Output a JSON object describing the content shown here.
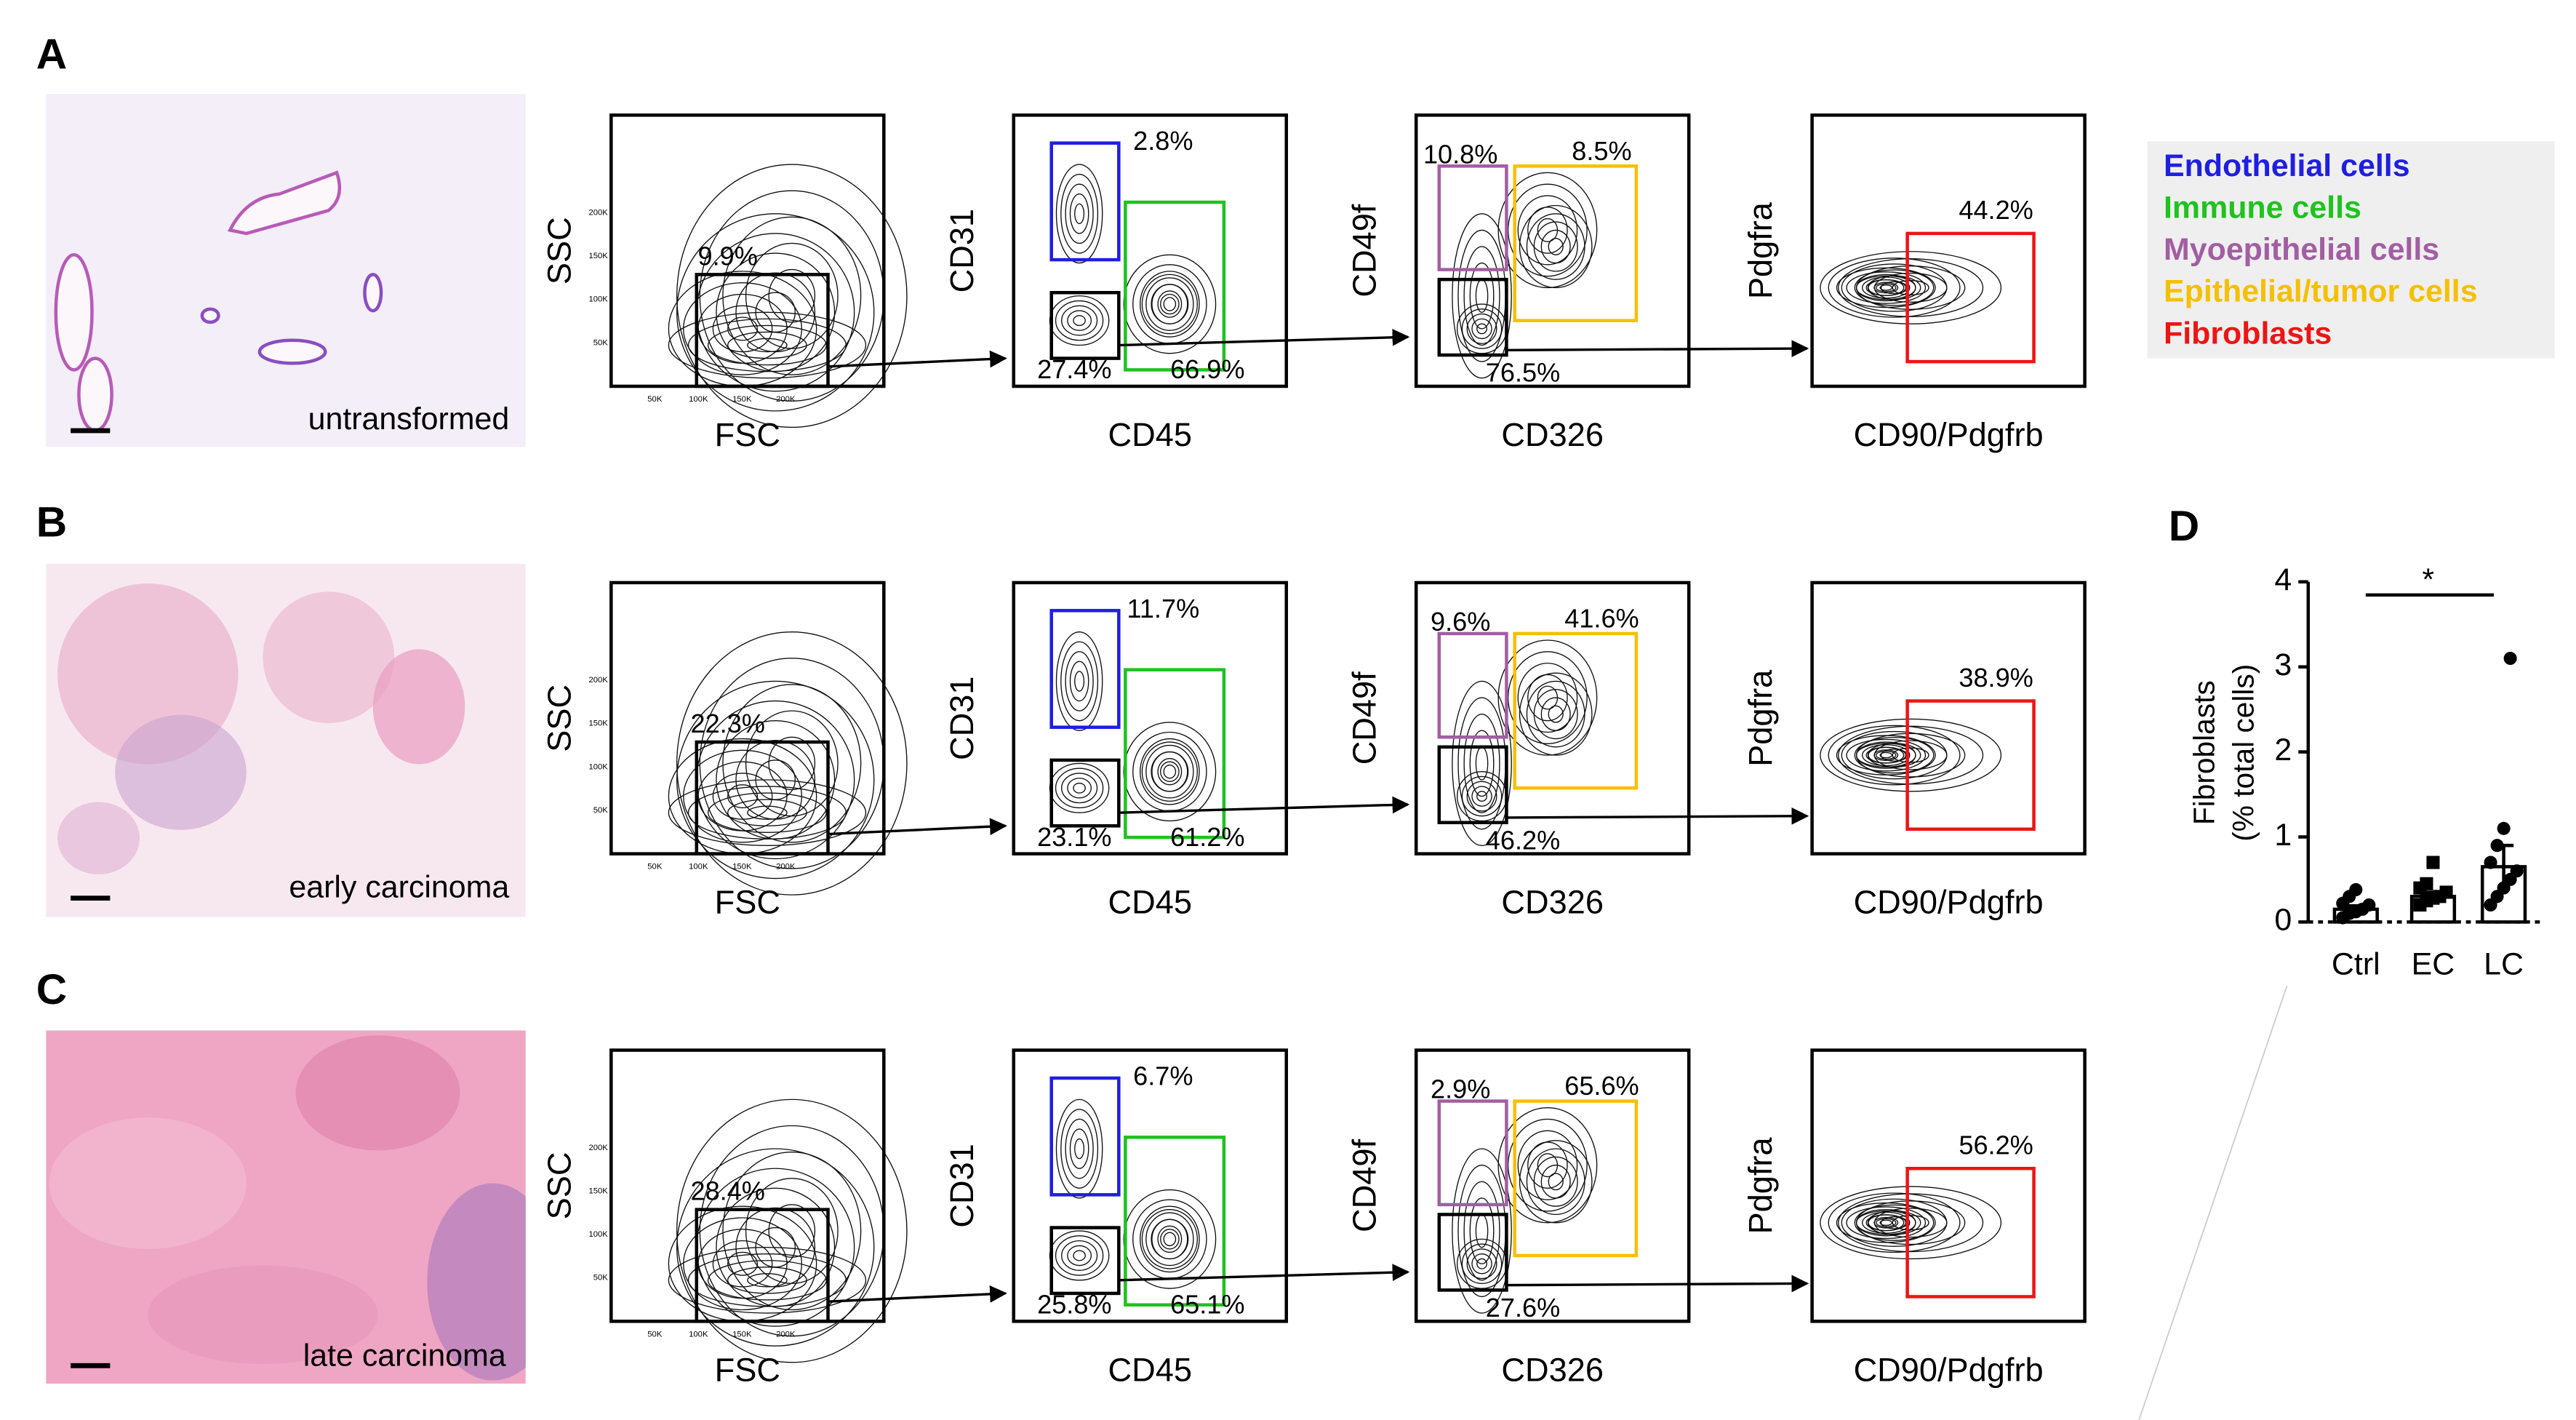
{
  "panels": [
    {
      "letter": "A",
      "tissue_label": "untransformed",
      "plots": [
        {
          "x_label": "FSC",
          "y_label": "SSC",
          "gates": [
            "9.9%"
          ]
        },
        {
          "x_label": "CD45",
          "y_label": "CD31",
          "gates": [
            "2.8%",
            "27.4%",
            "66.9%"
          ]
        },
        {
          "x_label": "CD326",
          "y_label": "CD49f",
          "gates": [
            "10.8%",
            "8.5%",
            "76.5%"
          ]
        },
        {
          "x_label": "CD90/Pdgfrb",
          "y_label": "Pdgfra",
          "gates": [
            "44.2%"
          ]
        }
      ]
    },
    {
      "letter": "B",
      "tissue_label": "early carcinoma",
      "plots": [
        {
          "x_label": "FSC",
          "y_label": "SSC",
          "gates": [
            "22.3%"
          ]
        },
        {
          "x_label": "CD45",
          "y_label": "CD31",
          "gates": [
            "11.7%",
            "23.1%",
            "61.2%"
          ]
        },
        {
          "x_label": "CD326",
          "y_label": "CD49f",
          "gates": [
            "9.6%",
            "41.6%",
            "46.2%"
          ]
        },
        {
          "x_label": "CD90/Pdgfrb",
          "y_label": "Pdgfra",
          "gates": [
            "38.9%"
          ]
        }
      ]
    },
    {
      "letter": "C",
      "tissue_label": "late carcinoma",
      "plots": [
        {
          "x_label": "FSC",
          "y_label": "SSC",
          "gates": [
            "28.4%"
          ]
        },
        {
          "x_label": "CD45",
          "y_label": "CD31",
          "gates": [
            "6.7%",
            "25.8%",
            "65.1%"
          ]
        },
        {
          "x_label": "CD326",
          "y_label": "CD49f",
          "gates": [
            "2.9%",
            "65.6%",
            "27.6%"
          ]
        },
        {
          "x_label": "CD90/Pdgfrb",
          "y_label": "Pdgfra",
          "gates": [
            "56.2%"
          ]
        }
      ]
    }
  ],
  "scatter_ticks": [
    "50K",
    "100K",
    "150K",
    "200K"
  ],
  "legend": [
    {
      "label": "Endothelial cells",
      "color": "#1f1fdf"
    },
    {
      "label": "Immune cells",
      "color": "#1fc21f"
    },
    {
      "label": "Myoepithelial cells",
      "color": "#a25ea2"
    },
    {
      "label": "Epithelial/tumor cells",
      "color": "#f5c000"
    },
    {
      "label": "Fibroblasts",
      "color": "#ee1414"
    }
  ],
  "chart_data": {
    "type": "bar",
    "letter": "D",
    "ylabel": [
      "Fibroblasts",
      "(% total cells)"
    ],
    "categories": [
      "Ctrl",
      "EC",
      "LC"
    ],
    "values": [
      0.15,
      0.3,
      0.65
    ],
    "errors": [
      0.04,
      0.05,
      0.25
    ],
    "points": [
      [
        0.05,
        0.1,
        0.12,
        0.15,
        0.2,
        0.22,
        0.3,
        0.38
      ],
      [
        0.2,
        0.25,
        0.28,
        0.3,
        0.35,
        0.4,
        0.45,
        0.7
      ],
      [
        0.2,
        0.3,
        0.4,
        0.5,
        0.6,
        0.7,
        0.9,
        1.1,
        3.1
      ]
    ],
    "ylim": [
      0,
      4
    ],
    "yticks": [
      0,
      1,
      2,
      3,
      4
    ],
    "annotation": "*"
  }
}
